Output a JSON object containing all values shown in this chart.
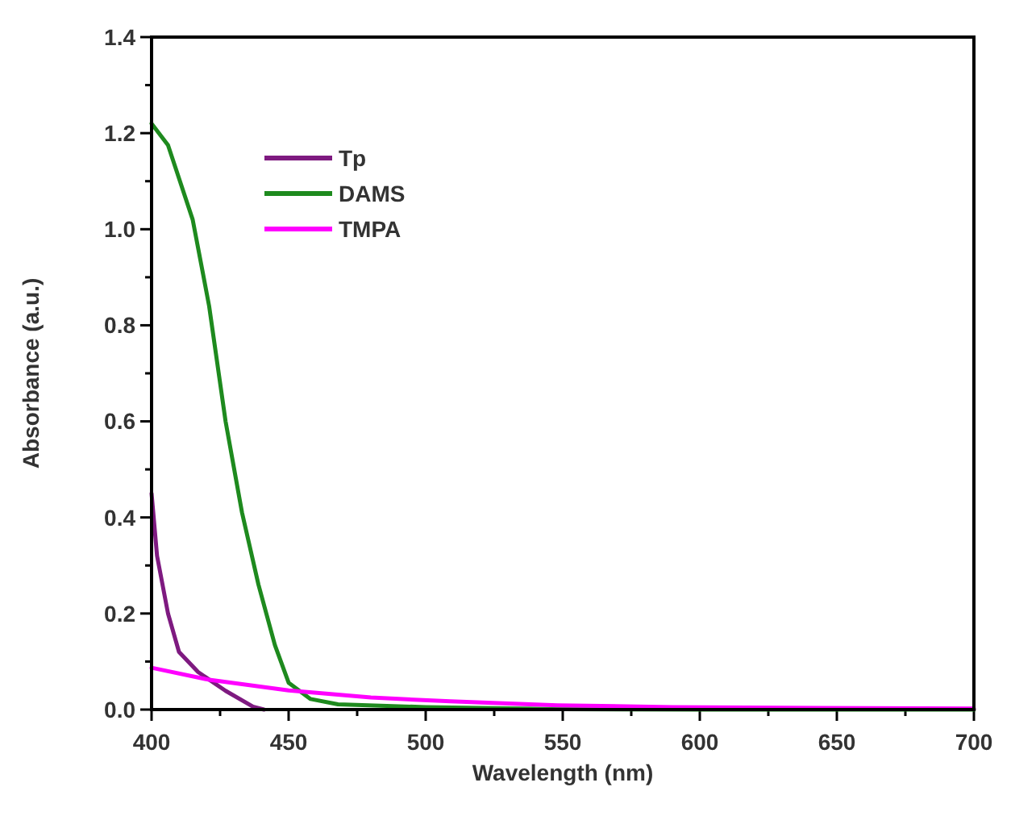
{
  "chart_data": {
    "type": "line",
    "xlabel": "Wavelength (nm)",
    "ylabel": "Absorbance (a.u.)",
    "xlim": [
      400,
      700
    ],
    "ylim": [
      0,
      1.4
    ],
    "xticks": [
      400,
      {
        "value": 425,
        "label": null
      },
      450,
      {
        "value": 475,
        "label": null
      },
      500,
      {
        "value": 525,
        "label": null
      },
      550,
      {
        "value": 575,
        "label": null
      },
      600,
      {
        "value": 625,
        "label": null
      },
      650,
      {
        "value": 675,
        "label": null
      },
      700
    ],
    "yticks": [
      {
        "value": 0,
        "label": "0.0"
      },
      {
        "value": 0.1,
        "label": null
      },
      {
        "value": 0.2,
        "label": "0.2"
      },
      {
        "value": 0.3,
        "label": null
      },
      {
        "value": 0.4,
        "label": "0.4"
      },
      {
        "value": 0.5,
        "label": null
      },
      {
        "value": 0.6,
        "label": "0.6"
      },
      {
        "value": 0.7,
        "label": null
      },
      {
        "value": 0.8,
        "label": "0.8"
      },
      {
        "value": 0.9,
        "label": null
      },
      {
        "value": 1.0,
        "label": "1.0"
      },
      {
        "value": 1.1,
        "label": null
      },
      {
        "value": 1.2,
        "label": "1.2"
      },
      {
        "value": 1.3,
        "label": null
      },
      {
        "value": 1.4,
        "label": "1.4"
      }
    ],
    "legend": "top left",
    "grid": false,
    "line_style": "solid",
    "series": [
      {
        "name": "Tp",
        "color": "#7e1a80",
        "x": [
          400,
          402,
          406,
          410,
          417,
          427,
          437,
          441
        ],
        "values": [
          0.45,
          0.32,
          0.2,
          0.12,
          0.078,
          0.039,
          0.006,
          0
        ]
      },
      {
        "name": "DAMS",
        "color": "#1e8a1e",
        "x": [
          400,
          406,
          415,
          421,
          427,
          433,
          439,
          445,
          450,
          458,
          468,
          500,
          550,
          600,
          700
        ],
        "values": [
          1.22,
          1.175,
          1.02,
          0.84,
          0.6,
          0.41,
          0.26,
          0.134,
          0.056,
          0.022,
          0.011,
          0.005,
          0.001,
          0,
          0
        ]
      },
      {
        "name": "TMPA",
        "color": "#ff00ff",
        "x": [
          400,
          421,
          450,
          480,
          509,
          548,
          590,
          700
        ],
        "values": [
          0.087,
          0.062,
          0.04,
          0.025,
          0.017,
          0.009,
          0.005,
          0.002
        ]
      }
    ]
  }
}
